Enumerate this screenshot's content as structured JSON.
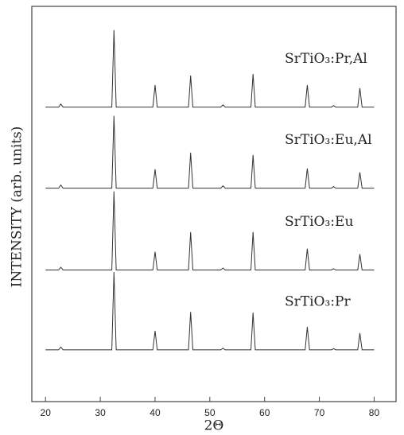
{
  "chart_data": {
    "type": "line",
    "xlabel": "2Θ",
    "ylabel": "INTENSITY (arb. units)",
    "x": [
      20,
      22.4,
      22.8,
      23.2,
      32.1,
      32.5,
      32.9,
      39.6,
      40.0,
      40.4,
      46.1,
      46.5,
      46.9,
      52.0,
      52.4,
      52.8,
      57.5,
      57.9,
      58.3,
      67.4,
      67.8,
      68.2,
      72.2,
      72.6,
      73.0,
      77.0,
      77.4,
      77.8,
      80
    ],
    "series": [
      {
        "name": "SrTiO₃:Pr,Al",
        "color": "#333333",
        "values": [
          74.5,
          74.5,
          75.3,
          74.5,
          74.5,
          94.0,
          74.5,
          74.5,
          80.1,
          74.5,
          74.5,
          82.5,
          74.5,
          74.5,
          75.1,
          74.5,
          74.5,
          82.9,
          74.5,
          74.5,
          80.1,
          74.5,
          74.5,
          74.9,
          74.5,
          74.5,
          79.3,
          74.5,
          74.5
        ]
      },
      {
        "name": "SrTiO₃:Eu,Al",
        "color": "#333333",
        "values": [
          54.0,
          54.0,
          54.8,
          54.0,
          54.0,
          72.3,
          54.0,
          54.0,
          58.8,
          54.0,
          54.0,
          63.0,
          54.0,
          54.0,
          54.6,
          54.0,
          54.0,
          62.4,
          54.0,
          54.0,
          59.0,
          54.0,
          54.0,
          54.4,
          54.0,
          54.0,
          58.0,
          54.0,
          54.0
        ]
      },
      {
        "name": "SrTiO₃:Eu",
        "color": "#333333",
        "values": [
          33.3,
          33.3,
          34.0,
          33.3,
          33.3,
          53.2,
          33.3,
          33.3,
          37.9,
          33.3,
          33.3,
          42.9,
          33.3,
          33.3,
          33.8,
          33.3,
          33.3,
          42.9,
          33.3,
          33.3,
          38.7,
          33.3,
          33.3,
          33.6,
          33.3,
          33.3,
          37.3,
          33.3,
          33.3
        ]
      },
      {
        "name": "SrTiO₃:Pr",
        "color": "#333333",
        "values": [
          13.1,
          13.1,
          13.8,
          13.1,
          13.1,
          32.8,
          13.1,
          13.1,
          17.9,
          13.1,
          13.1,
          22.7,
          13.1,
          13.1,
          13.5,
          13.1,
          13.1,
          22.5,
          13.1,
          13.1,
          18.9,
          13.1,
          13.1,
          13.4,
          13.1,
          13.1,
          17.3,
          13.1,
          13.1
        ]
      }
    ],
    "xlim": [
      17.5,
      84
    ],
    "ylim": [
      0,
      100
    ],
    "xticks": [
      20,
      30,
      40,
      50,
      60,
      70,
      80
    ]
  }
}
